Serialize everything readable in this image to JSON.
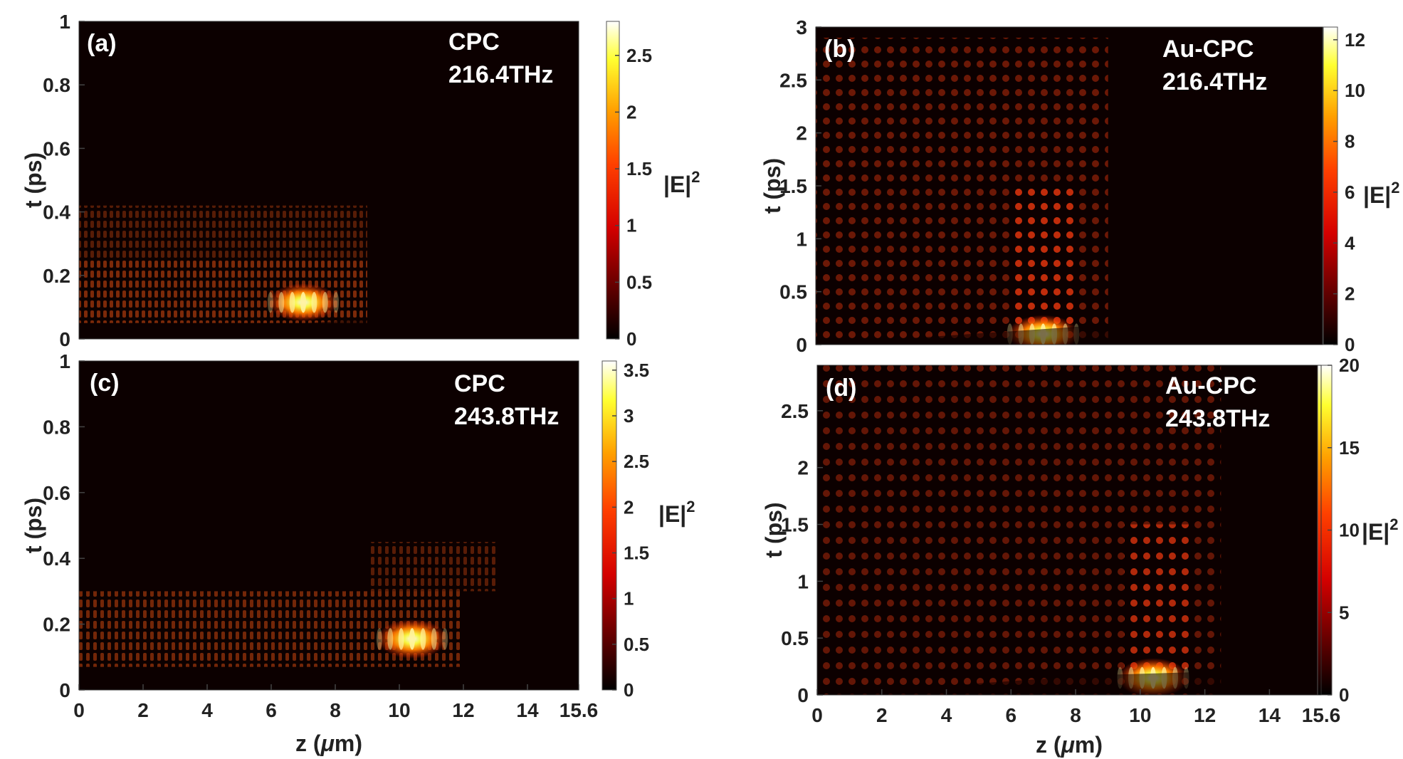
{
  "figure": {
    "xlabel_prefix": "z (",
    "xlabel_symbol": "μ",
    "xlabel_suffix": "m)"
  },
  "chart_data": [
    {
      "type": "heatmap",
      "panel_label": "(a)",
      "title_line1": "CPC",
      "title_line2": "216.4THz",
      "ylabel": "t (ps)",
      "ylim": [
        0,
        1
      ],
      "yticks": [
        0,
        0.2,
        0.4,
        0.6,
        0.8,
        1
      ],
      "ytick_labels": [
        "0",
        "0.2",
        "0.4",
        "0.6",
        "0.8",
        "1"
      ],
      "xlim": [
        0,
        15.6
      ],
      "xticks": [],
      "xtick_labels": [],
      "colorbar_label": "|E|",
      "colorbar_sup": "2",
      "clim": [
        0,
        2.8
      ],
      "cticks": [
        0,
        0.5,
        1,
        1.5,
        2,
        2.5
      ],
      "ctick_labels": [
        "0",
        "0.5",
        "1",
        "1.5",
        "2",
        "2.5"
      ],
      "features": [
        {
          "z": 7.0,
          "t": 0.115,
          "peak": 2.6,
          "description": "brightest spot"
        },
        {
          "z_range": [
            0,
            9
          ],
          "t_range": [
            0.05,
            0.25
          ],
          "level": 1.2,
          "description": "main fringe band"
        },
        {
          "z_range": [
            0,
            9
          ],
          "t_range": [
            0.25,
            0.42
          ],
          "level": 0.4,
          "description": "faint upper fringes"
        }
      ]
    },
    {
      "type": "heatmap",
      "panel_label": "(b)",
      "title_line1": "Au-CPC",
      "title_line2": "216.4THz",
      "ylabel": "t (ps)",
      "ylim": [
        0,
        3
      ],
      "yticks": [
        0,
        0.5,
        1,
        1.5,
        2,
        2.5,
        3
      ],
      "ytick_labels": [
        "0",
        "0.5",
        "1",
        "1.5",
        "2",
        "2.5",
        "3"
      ],
      "xlim": [
        0,
        15.6
      ],
      "xticks": [],
      "xtick_labels": [],
      "colorbar_label": "|E|",
      "colorbar_sup": "2",
      "clim": [
        0,
        12.5
      ],
      "cticks": [
        0,
        2,
        4,
        6,
        8,
        10,
        12
      ],
      "ctick_labels": [
        "0",
        "2",
        "4",
        "6",
        "8",
        "10",
        "12"
      ],
      "features": [
        {
          "z": 7.0,
          "t": 0.1,
          "peak": 12.0,
          "description": "brightest spot"
        },
        {
          "z_range": [
            0,
            9
          ],
          "t_range": [
            0,
            2.9
          ],
          "level": 4.0,
          "description": "checkerboard field"
        },
        {
          "z_range": [
            6,
            8
          ],
          "t_range": [
            0,
            1.5
          ],
          "level": 8.0,
          "description": "strong column"
        }
      ]
    },
    {
      "type": "heatmap",
      "panel_label": "(c)",
      "title_line1": "CPC",
      "title_line2": "243.8THz",
      "ylabel": "t (ps)",
      "ylim": [
        0,
        1
      ],
      "yticks": [
        0,
        0.2,
        0.4,
        0.6,
        0.8,
        1
      ],
      "ytick_labels": [
        "0",
        "0.2",
        "0.4",
        "0.6",
        "0.8",
        "1"
      ],
      "xlim": [
        0,
        15.6
      ],
      "xticks": [
        0,
        2,
        4,
        6,
        8,
        10,
        12,
        14,
        15.6
      ],
      "xtick_labels": [
        "0",
        "2",
        "4",
        "6",
        "8",
        "10",
        "12",
        "14",
        "15.6"
      ],
      "colorbar_label": "|E|",
      "colorbar_sup": "2",
      "clim": [
        0,
        3.6
      ],
      "cticks": [
        0,
        0.5,
        1,
        1.5,
        2,
        2.5,
        3,
        3.5
      ],
      "ctick_labels": [
        "0",
        "0.5",
        "1",
        "1.5",
        "2",
        "2.5",
        "3",
        "3.5"
      ],
      "features": [
        {
          "z": 10.4,
          "t": 0.155,
          "peak": 3.3,
          "description": "brightest spot"
        },
        {
          "z_range": [
            0,
            12
          ],
          "t_range": [
            0.07,
            0.3
          ],
          "level": 1.3,
          "description": "main fringe band"
        },
        {
          "z_range": [
            9,
            13
          ],
          "t_range": [
            0.3,
            0.45
          ],
          "level": 0.6,
          "description": "upper fringes"
        }
      ]
    },
    {
      "type": "heatmap",
      "panel_label": "(d)",
      "title_line1": "Au-CPC",
      "title_line2": "243.8THz",
      "ylabel": "t (ps)",
      "ylim": [
        0,
        2.9
      ],
      "yticks": [
        0,
        0.5,
        1,
        1.5,
        2,
        2.5
      ],
      "ytick_labels": [
        "0",
        "0.5",
        "1",
        "1.5",
        "2",
        "2.5"
      ],
      "xlim": [
        0,
        15.6
      ],
      "xticks": [
        0,
        2,
        4,
        6,
        8,
        10,
        12,
        14,
        15.6
      ],
      "xtick_labels": [
        "0",
        "2",
        "4",
        "6",
        "8",
        "10",
        "12",
        "14",
        "15.6"
      ],
      "colorbar_label": "|E|",
      "colorbar_sup": "2",
      "clim": [
        0,
        20
      ],
      "cticks": [
        0,
        5,
        10,
        15,
        20
      ],
      "ctick_labels": [
        "0",
        "5",
        "10",
        "15",
        "20"
      ],
      "features": [
        {
          "z": 10.4,
          "t": 0.15,
          "peak": 19.0,
          "description": "brightest spot"
        },
        {
          "z_range": [
            0,
            12.5
          ],
          "t_range": [
            0,
            2.9
          ],
          "level": 5.0,
          "description": "checkerboard field"
        },
        {
          "z_range": [
            9.5,
            11.5
          ],
          "t_range": [
            0,
            1.5
          ],
          "level": 10.0,
          "description": "strong column"
        }
      ]
    }
  ]
}
